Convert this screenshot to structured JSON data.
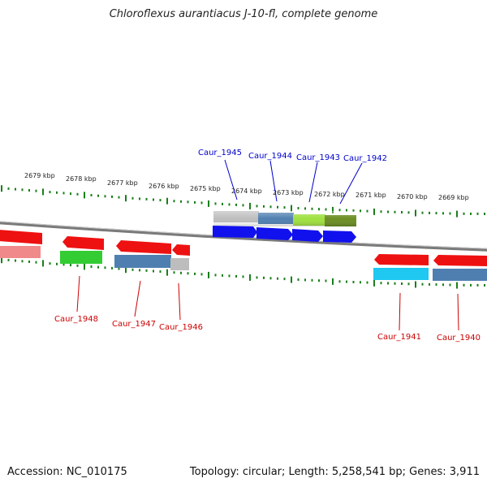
{
  "title": "Chloroflexus aurantiacus J-10-fl, complete genome",
  "footer": {
    "accession": "Accession: NC_010175",
    "summary": "Topology: circular; Length: 5,258,541 bp; Genes: 3,911"
  },
  "colors": {
    "backbone": "#8a8a8a",
    "tick": "#1a7f1a",
    "label_top": "#0000cc",
    "label_bottom": "#cc0000",
    "red": "#ee1111",
    "blue": "#1111ee",
    "gray": "#bdbdbd",
    "steelblue": "#4f7fb0",
    "green": "#33cc33",
    "lime": "#9fe040",
    "olive": "#6b8e23",
    "cyan": "#1ec8f0",
    "pink": "#f08a8a"
  },
  "scale_labels": [
    "2679 kbp",
    "2678 kbp",
    "2677 kbp",
    "2676 kbp",
    "2675 kbp",
    "2674 kbp",
    "2673 kbp",
    "2672 kbp",
    "2671 kbp",
    "2670 kbp",
    "2669 kbp"
  ],
  "genes_top": [
    "Caur_1945",
    "Caur_1944",
    "Caur_1943",
    "Caur_1942"
  ],
  "genes_bottom": [
    "Caur_1948",
    "Caur_1947",
    "Caur_1946",
    "Caur_1941",
    "Caur_1940"
  ]
}
